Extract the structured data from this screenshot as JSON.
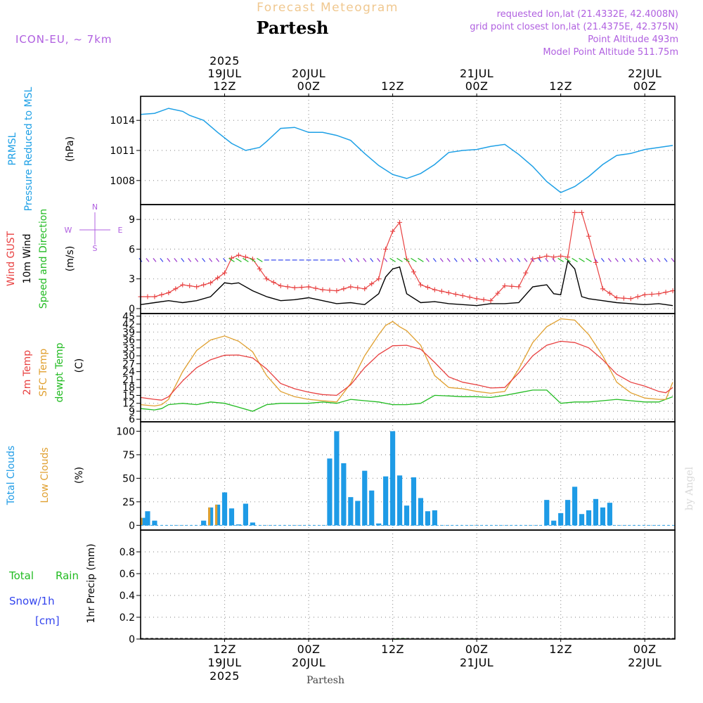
{
  "header": {
    "subtitle": "Forecast Meteogram",
    "title": "Partesh",
    "model": "ICON-EU, ~ 7km",
    "requested": "requested lon,lat (21.4332E, 42.4008N)",
    "closest": "grid point closest lon,lat (21.4375E, 42.375N)",
    "point_alt": "Point Altitude 493m",
    "model_alt": "Model Point Altitude 511.75m",
    "footer_name": "Partesh",
    "credit": "by Angel"
  },
  "time_axis": {
    "top": [
      {
        "t": 12,
        "lines": [
          "2025",
          "19JUL",
          "12Z"
        ]
      },
      {
        "t": 24,
        "lines": [
          "20JUL",
          "00Z"
        ]
      },
      {
        "t": 36,
        "lines": [
          "12Z"
        ]
      },
      {
        "t": 48,
        "lines": [
          "21JUL",
          "00Z"
        ]
      },
      {
        "t": 60,
        "lines": [
          "12Z"
        ]
      },
      {
        "t": 72,
        "lines": [
          "22JUL",
          "00Z"
        ]
      }
    ],
    "bottom": [
      {
        "t": 12,
        "lines": [
          "12Z",
          "19JUL",
          "2025"
        ]
      },
      {
        "t": 24,
        "lines": [
          "00Z",
          "20JUL"
        ]
      },
      {
        "t": 36,
        "lines": [
          "12Z"
        ]
      },
      {
        "t": 48,
        "lines": [
          "00Z",
          "21JUL"
        ]
      },
      {
        "t": 60,
        "lines": [
          "12Z"
        ]
      },
      {
        "t": 72,
        "lines": [
          "00Z",
          "22JUL"
        ]
      }
    ]
  },
  "colors": {
    "pressure": "#1ea0e6",
    "gust": "#e84040",
    "wind": "#000000",
    "sfc": "#e0a030",
    "dewpt": "#22bb22",
    "total_clouds": "#1e9be6",
    "low_clouds": "#e0a030",
    "rain": "#22bb22",
    "snow": "#3344ee",
    "header_purple": "#b060e0",
    "subtitle_orange": "#f0c890"
  },
  "panels": {
    "pressure": {
      "label1": "PRMSL",
      "label2": "Pressure Reduced to MSL",
      "unit": "(hPa)"
    },
    "wind": {
      "label1": "Wind GUST",
      "label2": "10m Wind",
      "label3": "Speed and Direction",
      "unit": "(m/s)",
      "compass": {
        "n": "N",
        "s": "S",
        "w": "W",
        "e": "E"
      }
    },
    "temp": {
      "label1": "2m Temp",
      "label2": "SFC Temp",
      "label3": "dewpt Temp",
      "unit": "(C)"
    },
    "clouds": {
      "label1": "Total Clouds",
      "label2": "Low Clouds",
      "unit": "(%)"
    },
    "precip": {
      "label1": "Total",
      "label1b": "Rain",
      "label2": "Snow/1h",
      "label3": "[cm]",
      "unit": "1hr Precip (mm)"
    }
  },
  "chart_data": [
    {
      "type": "line",
      "id": "pressure",
      "ylim": [
        1005.6,
        1016.4
      ],
      "yticks": [
        1008,
        1011,
        1014
      ],
      "series": [
        {
          "name": "PRMSL",
          "x": [
            0,
            2,
            4,
            6,
            7,
            9,
            11,
            13,
            15,
            17,
            18,
            20,
            22,
            24,
            26,
            28,
            30,
            32,
            34,
            36,
            38,
            40,
            42,
            44,
            46,
            48,
            50,
            52,
            54,
            56,
            58,
            60,
            62,
            64,
            66,
            68,
            70,
            72,
            74,
            76
          ],
          "values": [
            1014.6,
            1014.7,
            1015.2,
            1014.9,
            1014.5,
            1014.0,
            1012.8,
            1011.7,
            1011.0,
            1011.3,
            1011.9,
            1013.2,
            1013.3,
            1012.8,
            1012.8,
            1012.5,
            1012.0,
            1010.7,
            1009.5,
            1008.6,
            1008.2,
            1008.7,
            1009.6,
            1010.8,
            1011.0,
            1011.1,
            1011.4,
            1011.6,
            1010.6,
            1009.4,
            1007.9,
            1006.8,
            1007.4,
            1008.4,
            1009.6,
            1010.5,
            1010.7,
            1011.1,
            1011.3,
            1011.5
          ]
        }
      ]
    },
    {
      "type": "line",
      "id": "wind",
      "ylim": [
        -0.5,
        10.5
      ],
      "yticks": [
        0,
        3,
        6,
        9
      ],
      "series": [
        {
          "name": "Wind GUST",
          "x": [
            0,
            2,
            4,
            6,
            8,
            10,
            12,
            13,
            14,
            16,
            18,
            20,
            22,
            24,
            26,
            28,
            30,
            32,
            34,
            35,
            36,
            37,
            38,
            40,
            42,
            44,
            46,
            48,
            50,
            52,
            54,
            56,
            58,
            59,
            60,
            61,
            62,
            63,
            64,
            66,
            68,
            70,
            72,
            74,
            76
          ],
          "values": [
            1.2,
            1.2,
            1.6,
            2.4,
            2.2,
            2.6,
            3.6,
            5.1,
            5.4,
            5.0,
            3.0,
            2.3,
            2.1,
            2.2,
            1.9,
            1.8,
            2.2,
            2.0,
            3.0,
            6.0,
            7.8,
            8.7,
            5.0,
            2.4,
            1.9,
            1.6,
            1.3,
            1.0,
            0.8,
            2.3,
            2.2,
            5.0,
            5.3,
            5.2,
            5.3,
            5.2,
            9.7,
            9.7,
            7.3,
            2.0,
            1.1,
            1.0,
            1.4,
            1.5,
            1.8
          ]
        },
        {
          "name": "10m Wind",
          "x": [
            0,
            2,
            4,
            6,
            8,
            10,
            12,
            13,
            14,
            16,
            18,
            20,
            22,
            24,
            26,
            28,
            30,
            32,
            34,
            35,
            36,
            37,
            38,
            40,
            42,
            44,
            46,
            48,
            50,
            52,
            54,
            56,
            58,
            59,
            60,
            61,
            62,
            63,
            64,
            66,
            68,
            70,
            72,
            74,
            76
          ],
          "values": [
            0.4,
            0.6,
            0.8,
            0.6,
            0.8,
            1.2,
            2.6,
            2.5,
            2.6,
            1.8,
            1.2,
            0.8,
            0.9,
            1.1,
            0.8,
            0.5,
            0.6,
            0.4,
            1.5,
            3.2,
            4.0,
            4.2,
            1.5,
            0.6,
            0.7,
            0.5,
            0.4,
            0.3,
            0.5,
            0.5,
            0.6,
            2.2,
            2.4,
            1.5,
            1.4,
            4.8,
            4.0,
            1.2,
            1.0,
            0.8,
            0.6,
            0.5,
            0.4,
            0.5,
            0.3
          ]
        }
      ]
    },
    {
      "type": "line",
      "id": "temperature",
      "ylim": [
        5.0,
        46.0
      ],
      "yticks": [
        6,
        9,
        12,
        15,
        18,
        21,
        24,
        27,
        30,
        33,
        36,
        39,
        42,
        45
      ],
      "series": [
        {
          "name": "2m Temp",
          "x": [
            0,
            2,
            3,
            4,
            6,
            8,
            10,
            12,
            14,
            16,
            18,
            20,
            22,
            24,
            26,
            28,
            30,
            32,
            34,
            36,
            38,
            40,
            42,
            44,
            46,
            48,
            50,
            52,
            54,
            56,
            58,
            60,
            62,
            64,
            66,
            68,
            70,
            72,
            74,
            75,
            76
          ],
          "values": [
            14.2,
            13.5,
            13.2,
            14.5,
            20.5,
            25.5,
            28.5,
            30.2,
            30.3,
            29.2,
            25.0,
            19.5,
            17.5,
            16.2,
            15.3,
            15.0,
            19.0,
            25.5,
            30.5,
            33.8,
            34.0,
            32.5,
            27.5,
            22.0,
            20.0,
            19.0,
            17.8,
            18.0,
            23.5,
            30.0,
            34.0,
            35.5,
            35.0,
            33.0,
            28.5,
            23.0,
            20.0,
            18.5,
            16.5,
            16.0,
            18.0
          ]
        },
        {
          "name": "SFC Temp",
          "x": [
            0,
            2,
            3,
            4,
            6,
            8,
            10,
            12,
            14,
            16,
            18,
            20,
            22,
            24,
            26,
            28,
            30,
            32,
            34,
            35,
            36,
            37,
            38,
            40,
            42,
            44,
            46,
            48,
            50,
            52,
            54,
            56,
            58,
            60,
            62,
            64,
            66,
            68,
            70,
            72,
            74,
            75,
            76
          ],
          "values": [
            11.5,
            11.0,
            11.5,
            13.5,
            24.0,
            32.0,
            36.0,
            37.5,
            35.5,
            31.5,
            22.5,
            16.5,
            14.5,
            13.5,
            13.0,
            12.5,
            19.5,
            30.0,
            38.0,
            41.5,
            43.0,
            41.0,
            39.5,
            34.0,
            22.5,
            18.0,
            17.5,
            16.5,
            15.8,
            16.5,
            25.0,
            35.0,
            41.0,
            44.0,
            43.5,
            38.0,
            30.0,
            20.0,
            16.0,
            14.0,
            13.5,
            13.5,
            20.0
          ]
        },
        {
          "name": "dewpt Temp",
          "x": [
            0,
            2,
            3,
            4,
            6,
            8,
            10,
            12,
            14,
            16,
            18,
            20,
            22,
            24,
            26,
            28,
            30,
            32,
            34,
            36,
            38,
            40,
            42,
            44,
            46,
            48,
            50,
            52,
            54,
            56,
            58,
            60,
            62,
            64,
            66,
            68,
            70,
            72,
            74,
            76
          ],
          "values": [
            10.0,
            9.5,
            10.0,
            11.5,
            12.0,
            11.5,
            12.5,
            12.0,
            10.5,
            9.0,
            11.5,
            12.0,
            12.0,
            12.0,
            12.5,
            12.0,
            13.5,
            13.0,
            12.5,
            11.5,
            11.5,
            12.0,
            15.0,
            14.8,
            14.5,
            14.5,
            14.2,
            15.0,
            16.0,
            17.0,
            17.0,
            12.0,
            12.5,
            12.5,
            13.0,
            13.5,
            13.0,
            12.5,
            12.5,
            14.5
          ]
        }
      ]
    },
    {
      "type": "bar",
      "id": "clouds",
      "ylim": [
        -5,
        110
      ],
      "yticks": [
        0,
        25,
        50,
        75,
        100
      ],
      "series": [
        {
          "name": "Total Clouds",
          "x": [
            0.5,
            1.0,
            2.0,
            9.0,
            10.0,
            11.0,
            12.0,
            13.0,
            14.0,
            15.0,
            16.0,
            27.0,
            28.0,
            29.0,
            30.0,
            31.0,
            32.0,
            33.0,
            34.0,
            35.0,
            36.0,
            37.0,
            38.0,
            39.0,
            40.0,
            41.0,
            42.0,
            58.0,
            59.0,
            60.0,
            61.0,
            62.0,
            63.0,
            64.0,
            65.0,
            66.0,
            67.0
          ],
          "values": [
            8,
            15,
            5,
            5,
            19,
            22,
            35,
            18,
            1,
            23,
            3,
            71,
            100,
            66,
            30,
            26,
            58,
            37,
            2,
            52,
            100,
            53,
            21,
            51,
            29,
            15,
            16,
            27,
            5,
            13,
            27,
            41,
            12,
            16,
            28,
            19,
            24
          ]
        },
        {
          "name": "Low Clouds",
          "x": [
            0.3,
            10.0,
            11.0
          ],
          "values": [
            8,
            19,
            22
          ]
        }
      ]
    },
    {
      "type": "bar",
      "id": "precip",
      "ylim": [
        0,
        1.0
      ],
      "yticks": [
        0,
        0.2,
        0.4,
        0.6,
        0.8
      ],
      "series": [
        {
          "name": "Total Rain",
          "x": [
            36.5,
            37.5
          ],
          "values": [
            0.004,
            0.007
          ]
        }
      ]
    }
  ]
}
